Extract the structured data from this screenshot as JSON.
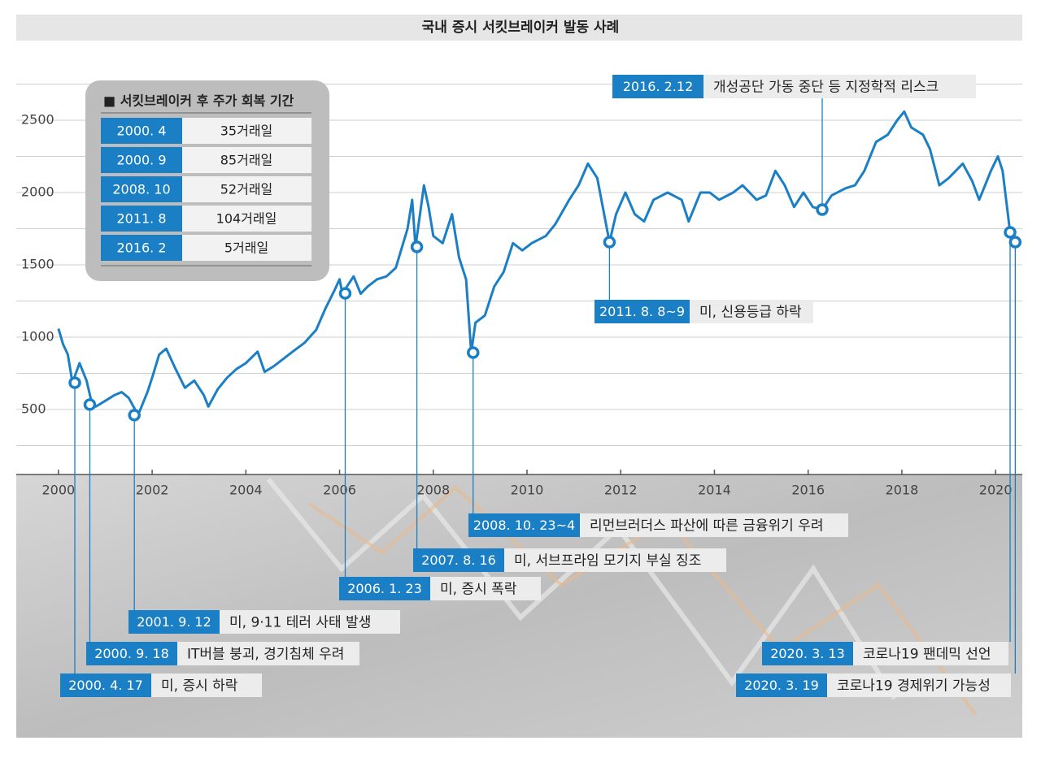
{
  "chart_data": {
    "type": "line",
    "title": "국내 증시 서킷브레이커 발동 사례",
    "color": "#1a7fc4",
    "xlim": [
      1999.1,
      2020.57
    ],
    "xticks": [
      2000,
      2002,
      2004,
      2006,
      2008,
      2010,
      2012,
      2014,
      2016,
      2018,
      2020
    ],
    "ylim": [
      50,
      2800
    ],
    "yticks": [
      500,
      1000,
      1500,
      2000,
      2500
    ],
    "y_minor_ticks": [
      250,
      750,
      1250,
      1750,
      2250,
      2750
    ],
    "grid": true,
    "x": [
      2000.0,
      2000.1,
      2000.2,
      2000.3,
      2000.45,
      2000.6,
      2000.72,
      2000.8,
      2001.0,
      2001.2,
      2001.35,
      2001.5,
      2001.7,
      2001.9,
      2002.0,
      2002.15,
      2002.3,
      2002.5,
      2002.7,
      2002.9,
      2003.1,
      2003.2,
      2003.4,
      2003.6,
      2003.8,
      2004.0,
      2004.25,
      2004.4,
      2004.6,
      2004.8,
      2005.0,
      2005.25,
      2005.5,
      2005.7,
      2005.9,
      2006.0,
      2006.06,
      2006.3,
      2006.45,
      2006.6,
      2006.8,
      2007.0,
      2007.2,
      2007.45,
      2007.55,
      2007.62,
      2007.8,
      2007.9,
      2008.0,
      2008.2,
      2008.4,
      2008.55,
      2008.7,
      2008.81,
      2008.9,
      2009.1,
      2009.3,
      2009.5,
      2009.7,
      2009.9,
      2010.1,
      2010.4,
      2010.6,
      2010.9,
      2011.1,
      2011.3,
      2011.5,
      2011.76,
      2011.9,
      2012.1,
      2012.3,
      2012.5,
      2012.7,
      2013.0,
      2013.3,
      2013.45,
      2013.7,
      2013.9,
      2014.1,
      2014.4,
      2014.6,
      2014.9,
      2015.1,
      2015.3,
      2015.5,
      2015.7,
      2015.9,
      2016.1,
      2016.3,
      2016.5,
      2016.8,
      2017.0,
      2017.2,
      2017.45,
      2017.7,
      2017.9,
      2018.05,
      2018.2,
      2018.45,
      2018.6,
      2018.8,
      2019.0,
      2019.3,
      2019.5,
      2019.65,
      2019.9,
      2020.05,
      2020.15,
      2020.31,
      2020.42
    ],
    "values": [
      1059,
      950,
      880,
      685,
      820,
      700,
      534,
      520,
      560,
      600,
      620,
      580,
      461,
      620,
      720,
      880,
      920,
      780,
      650,
      700,
      600,
      520,
      640,
      720,
      780,
      820,
      900,
      760,
      800,
      850,
      900,
      960,
      1050,
      1200,
      1330,
      1400,
      1303,
      1420,
      1300,
      1350,
      1400,
      1420,
      1480,
      1750,
      1950,
      1624,
      2050,
      1900,
      1700,
      1650,
      1850,
      1550,
      1400,
      893,
      1100,
      1150,
      1350,
      1450,
      1650,
      1600,
      1650,
      1700,
      1780,
      1950,
      2050,
      2200,
      2100,
      1657,
      1850,
      2000,
      1850,
      1800,
      1950,
      2000,
      1950,
      1800,
      2000,
      2000,
      1950,
      2000,
      2050,
      1950,
      1980,
      2150,
      2050,
      1900,
      2000,
      1900,
      1882,
      1980,
      2030,
      2050,
      2150,
      2350,
      2400,
      2500,
      2560,
      2450,
      2400,
      2300,
      2050,
      2100,
      2200,
      2080,
      1950,
      2150,
      2250,
      2150,
      1725,
      1657
    ],
    "events": [
      {
        "date": "2000. 4. 17",
        "text": "미, 증시 하락",
        "x": 2000.35,
        "y": 685
      },
      {
        "date": "2000. 9. 18",
        "text": "IT버블 붕괴, 경기침체 우려",
        "x": 2000.67,
        "y": 534
      },
      {
        "date": "2001. 9. 12",
        "text": "미, 9·11 테러 사태 발생",
        "x": 2001.62,
        "y": 461
      },
      {
        "date": "2006. 1. 23",
        "text": "미, 증시 폭락",
        "x": 2006.12,
        "y": 1303
      },
      {
        "date": "2007. 8. 16",
        "text": "미, 서브프라임 모기지 부실 징조",
        "x": 2007.65,
        "y": 1624
      },
      {
        "date": "2008. 10. 23~4",
        "text": "리먼브러더스 파산에 따른 금융위기 우려",
        "x": 2008.85,
        "y": 893
      },
      {
        "date": "2011. 8. 8~9",
        "text": "미, 신용등급 하락",
        "x": 2011.76,
        "y": 1657
      },
      {
        "date": "2016. 2.12",
        "text": "개성공단 가동 중단 등 지정학적 리스크",
        "x": 2016.3,
        "y": 1882
      },
      {
        "date": "2020. 3. 13",
        "text": "코로나19 팬데믹 선언",
        "x": 2020.31,
        "y": 1725
      },
      {
        "date": "2020. 3. 19",
        "text": "코로나19 경제위기 가능성",
        "x": 2020.42,
        "y": 1657
      }
    ],
    "inset": {
      "title": "■ 서킷브레이커 후 주가 회복 기간",
      "rows": [
        [
          "2000. 4",
          "35거래일"
        ],
        [
          "2000. 9",
          "85거래일"
        ],
        [
          "2008. 10",
          "52거래일"
        ],
        [
          "2011. 8",
          "104거래일"
        ],
        [
          "2016. 2",
          "5거래일"
        ]
      ]
    }
  }
}
